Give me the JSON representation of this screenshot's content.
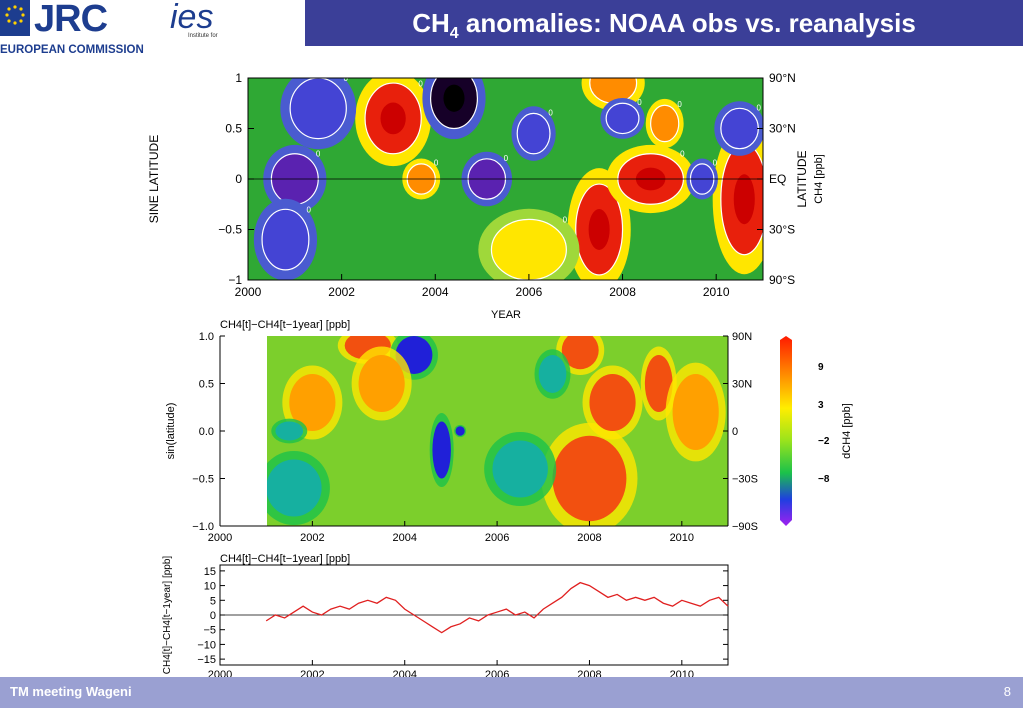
{
  "header": {
    "title_main": "CH",
    "title_sub": "4",
    "title_rest": " anomalies: NOAA obs vs. reanalysis",
    "logo_text": "JRC",
    "org_text": "EUROPEAN COMMISSION",
    "ies_text": "Institute for",
    "accent": "#3b3f98"
  },
  "footer": {
    "text": "TM meeting Wageni",
    "page": "8"
  },
  "chart_data": [
    {
      "type": "heatmap",
      "xlabel": "YEAR",
      "ylabel": "SINE LATITUDE",
      "right_label": "LATITUDE",
      "unit_label": "CH4 [ppb]",
      "x_ticks": [
        "2000",
        "2002",
        "2004",
        "2006",
        "2008",
        "2010"
      ],
      "xlim": [
        2000,
        2011
      ],
      "y_ticks": [
        "1",
        "0.5",
        "0",
        "−0.5",
        "−1"
      ],
      "ylim": [
        -1,
        1
      ],
      "lat_ticks": [
        "90°N",
        "30°N",
        "EQ",
        "30°S",
        "90°S"
      ],
      "contour_label": "0",
      "blobs": [
        {
          "x": 2003.1,
          "y": 0.6,
          "v": 9,
          "rx": 0.6,
          "ry": 0.35
        },
        {
          "x": 2004.4,
          "y": 0.8,
          "v": -11,
          "rx": 0.5,
          "ry": 0.3
        },
        {
          "x": 2001.0,
          "y": 0.0,
          "v": -6,
          "rx": 0.5,
          "ry": 0.25
        },
        {
          "x": 2003.7,
          "y": 0.0,
          "v": 7,
          "rx": 0.3,
          "ry": 0.15
        },
        {
          "x": 2005.1,
          "y": 0.0,
          "v": -6,
          "rx": 0.4,
          "ry": 0.2
        },
        {
          "x": 2007.5,
          "y": -0.5,
          "v": 9,
          "rx": 0.5,
          "ry": 0.45
        },
        {
          "x": 2008.6,
          "y": 0.0,
          "v": 9,
          "rx": 0.7,
          "ry": 0.25
        },
        {
          "x": 2010.6,
          "y": -0.2,
          "v": 10,
          "rx": 0.5,
          "ry": 0.55
        },
        {
          "x": 2007.8,
          "y": 0.95,
          "v": 6,
          "rx": 0.5,
          "ry": 0.2
        },
        {
          "x": 2008.9,
          "y": 0.55,
          "v": 7,
          "rx": 0.3,
          "ry": 0.18
        },
        {
          "x": 2008.0,
          "y": 0.6,
          "v": -5,
          "rx": 0.35,
          "ry": 0.15
        },
        {
          "x": 2006.1,
          "y": 0.45,
          "v": -4,
          "rx": 0.35,
          "ry": 0.2
        },
        {
          "x": 2009.7,
          "y": 0.0,
          "v": -4,
          "rx": 0.25,
          "ry": 0.15
        },
        {
          "x": 2000.8,
          "y": -0.6,
          "v": -4,
          "rx": 0.5,
          "ry": 0.3
        },
        {
          "x": 2010.5,
          "y": 0.5,
          "v": -5,
          "rx": 0.4,
          "ry": 0.2
        },
        {
          "x": 2001.5,
          "y": 0.7,
          "v": -3,
          "rx": 0.6,
          "ry": 0.3
        },
        {
          "x": 2006.0,
          "y": -0.7,
          "v": 2,
          "rx": 0.8,
          "ry": 0.3
        }
      ]
    },
    {
      "type": "heatmap",
      "title": "CH4[t]−CH4[t−1year] [ppb]",
      "ylabel": "sin(latitude)",
      "colorbar_label": "dCH4 [ppb]",
      "x_ticks": [
        "2000",
        "2002",
        "2004",
        "2006",
        "2008",
        "2010"
      ],
      "xlim": [
        2000,
        2011
      ],
      "data_start": 2001,
      "y_ticks": [
        "1.0",
        "0.5",
        "0.0",
        "−0.5",
        "−1.0"
      ],
      "ylim": [
        -1,
        1
      ],
      "lat_ticks": [
        "90N",
        "30N",
        "0",
        "−30S",
        "−90S"
      ],
      "colorbar_ticks": [
        "9",
        "3",
        "−2",
        "−8"
      ],
      "blobs": [
        {
          "x": 2003.2,
          "y": 0.9,
          "v": 8,
          "rx": 0.5,
          "ry": 0.15
        },
        {
          "x": 2004.2,
          "y": 0.8,
          "v": -10,
          "rx": 0.4,
          "ry": 0.2
        },
        {
          "x": 2002.0,
          "y": 0.3,
          "v": 4,
          "rx": 0.5,
          "ry": 0.3
        },
        {
          "x": 2003.5,
          "y": 0.5,
          "v": 5,
          "rx": 0.5,
          "ry": 0.3
        },
        {
          "x": 2004.8,
          "y": -0.2,
          "v": -6,
          "rx": 0.2,
          "ry": 0.3
        },
        {
          "x": 2005.2,
          "y": 0.0,
          "v": -10,
          "rx": 0.1,
          "ry": 0.05
        },
        {
          "x": 2007.8,
          "y": 0.85,
          "v": 10,
          "rx": 0.4,
          "ry": 0.2
        },
        {
          "x": 2008.0,
          "y": -0.5,
          "v": 7,
          "rx": 0.8,
          "ry": 0.45
        },
        {
          "x": 2008.5,
          "y": 0.3,
          "v": 6,
          "rx": 0.5,
          "ry": 0.3
        },
        {
          "x": 2009.5,
          "y": 0.5,
          "v": 7,
          "rx": 0.3,
          "ry": 0.3
        },
        {
          "x": 2010.3,
          "y": 0.2,
          "v": 5,
          "rx": 0.5,
          "ry": 0.4
        },
        {
          "x": 2001.5,
          "y": 0.0,
          "v": -4,
          "rx": 0.3,
          "ry": 0.1
        },
        {
          "x": 2006.5,
          "y": -0.4,
          "v": -2,
          "rx": 0.6,
          "ry": 0.3
        },
        {
          "x": 2007.2,
          "y": 0.6,
          "v": -3,
          "rx": 0.3,
          "ry": 0.2
        },
        {
          "x": 2001.6,
          "y": -0.6,
          "v": -1,
          "rx": 0.6,
          "ry": 0.3
        }
      ]
    },
    {
      "type": "line",
      "title": "CH4[t]−CH4[t−1year] [ppb]",
      "ylabel": "CH4[t]−CH4[t−1year] [ppb]",
      "x_ticks": [
        "2000",
        "2002",
        "2004",
        "2006",
        "2008",
        "2010"
      ],
      "xlim": [
        2000,
        2011
      ],
      "ylim": [
        -17,
        17
      ],
      "y_ticks": [
        "15",
        "10",
        "5",
        "0",
        "−5",
        "−10",
        "−15"
      ],
      "series": [
        {
          "color": "#e02020",
          "x": [
            2001.0,
            2001.2,
            2001.4,
            2001.6,
            2001.8,
            2002.0,
            2002.2,
            2002.4,
            2002.6,
            2002.8,
            2003.0,
            2003.2,
            2003.4,
            2003.6,
            2003.8,
            2004.0,
            2004.2,
            2004.4,
            2004.6,
            2004.8,
            2005.0,
            2005.2,
            2005.4,
            2005.6,
            2005.8,
            2006.0,
            2006.2,
            2006.4,
            2006.6,
            2006.8,
            2007.0,
            2007.2,
            2007.4,
            2007.6,
            2007.8,
            2008.0,
            2008.2,
            2008.4,
            2008.6,
            2008.8,
            2009.0,
            2009.2,
            2009.4,
            2009.6,
            2009.8,
            2010.0,
            2010.2,
            2010.4,
            2010.6,
            2010.8,
            2011.0
          ],
          "values": [
            -2,
            0,
            -1,
            1,
            3,
            1,
            0,
            2,
            3,
            2,
            4,
            5,
            4,
            6,
            5,
            2,
            0,
            -2,
            -4,
            -6,
            -4,
            -3,
            -1,
            -2,
            0,
            1,
            2,
            0,
            1,
            -1,
            2,
            4,
            6,
            9,
            11,
            10,
            8,
            6,
            7,
            5,
            6,
            5,
            6,
            4,
            3,
            5,
            4,
            3,
            5,
            6,
            3
          ]
        }
      ]
    }
  ]
}
